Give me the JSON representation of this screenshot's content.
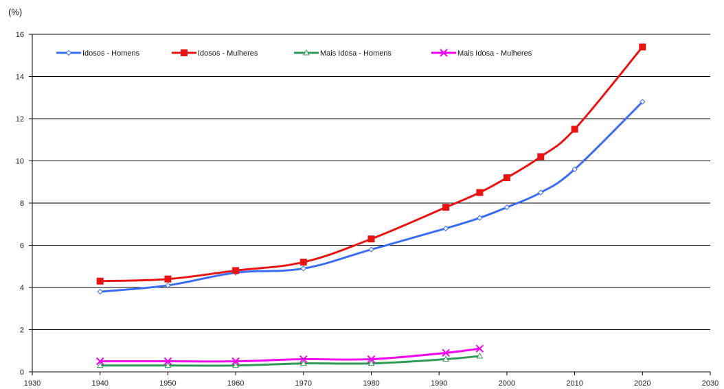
{
  "chart_data": {
    "type": "line",
    "title": "",
    "xlabel": "",
    "ylabel": "(%)",
    "xlim": [
      1930,
      2030
    ],
    "ylim": [
      0,
      16
    ],
    "x_ticks": [
      "1930",
      "1940",
      "1950",
      "1960",
      "1970",
      "1980",
      "1990",
      "2000",
      "2010",
      "2020",
      "2030"
    ],
    "y_ticks": [
      "0",
      "2",
      "4",
      "6",
      "8",
      "10",
      "12",
      "14",
      "16"
    ],
    "grid": "horizontal",
    "legend_position": "top-left",
    "series": [
      {
        "name": "Idosos - Homens",
        "color": "#3b6cf2",
        "marker": "diamond",
        "x": [
          1940,
          1950,
          1960,
          1970,
          1980,
          1991,
          1996,
          2000,
          2005,
          2010,
          2020
        ],
        "y": [
          3.8,
          4.1,
          4.7,
          4.9,
          5.8,
          6.8,
          7.3,
          7.8,
          8.5,
          9.6,
          12.8
        ]
      },
      {
        "name": "Idosos - Mulheres",
        "color": "#e81414",
        "marker": "square",
        "x": [
          1940,
          1950,
          1960,
          1970,
          1980,
          1991,
          1996,
          2000,
          2005,
          2010,
          2020
        ],
        "y": [
          4.3,
          4.4,
          4.8,
          5.2,
          6.3,
          7.8,
          8.5,
          9.2,
          10.2,
          11.5,
          15.4
        ]
      },
      {
        "name": "Mais Idosa - Homens",
        "color": "#2f9a55",
        "marker": "triangle",
        "x": [
          1940,
          1950,
          1960,
          1970,
          1980,
          1991,
          1996
        ],
        "y": [
          0.3,
          0.3,
          0.3,
          0.4,
          0.4,
          0.6,
          0.75
        ]
      },
      {
        "name": "Mais Idosa - Mulheres",
        "color": "#f200f2",
        "marker": "x",
        "x": [
          1940,
          1950,
          1960,
          1970,
          1980,
          1991,
          1996
        ],
        "y": [
          0.5,
          0.5,
          0.5,
          0.6,
          0.6,
          0.9,
          1.1
        ]
      }
    ]
  }
}
